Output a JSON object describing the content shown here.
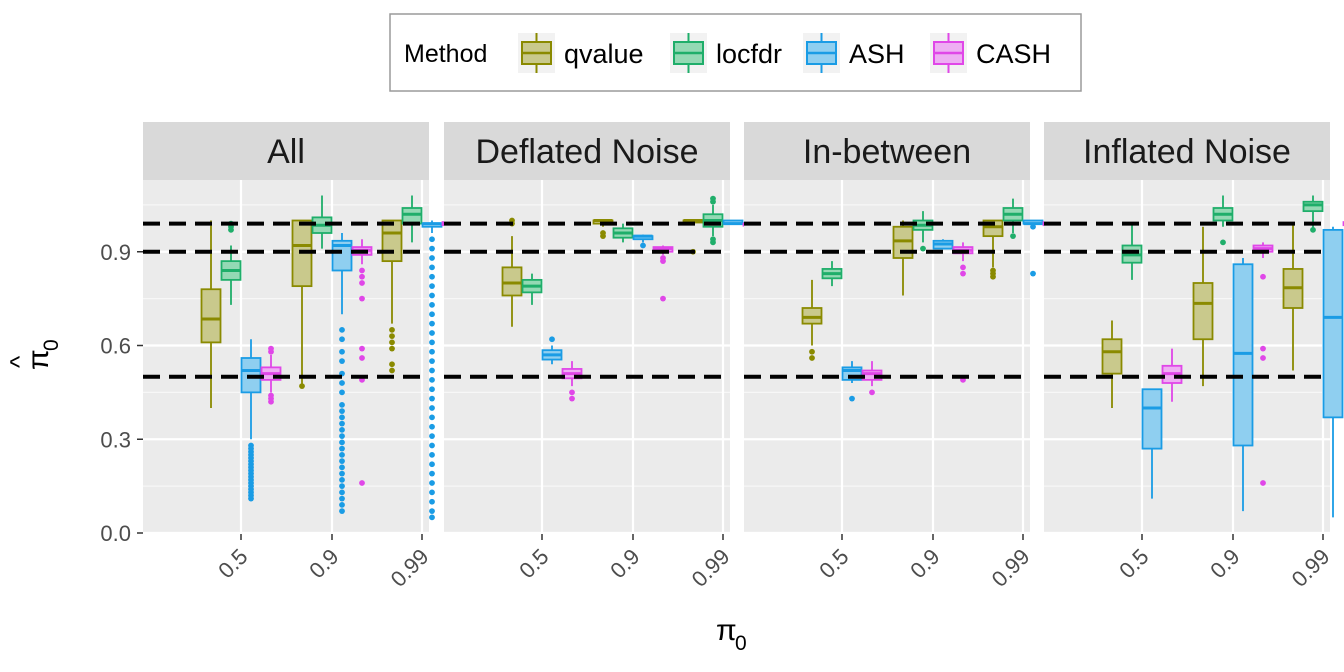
{
  "chart_data": {
    "type": "box",
    "xlabel": "π",
    "xlabel_sub": "0",
    "ylabel": "π",
    "ylabel_sub": "0",
    "ylabel_hat": "^",
    "y_ticks": [
      "0.0",
      "0.3",
      "0.6",
      "0.9"
    ],
    "y_tick_values": [
      0.0,
      0.3,
      0.6,
      0.9
    ],
    "ylim": [
      0,
      1.12
    ],
    "x_categories": [
      "0.5",
      "0.9",
      "0.99"
    ],
    "reference_lines": [
      0.5,
      0.9,
      0.99
    ],
    "legend_title": "Method",
    "legend_placement": "top",
    "methods": [
      {
        "name": "qvalue",
        "color": "#8a8a00",
        "fill": "#c9c98c"
      },
      {
        "name": "locfdr",
        "color": "#1fae6a",
        "fill": "#94d9b4"
      },
      {
        "name": "ASH",
        "color": "#1a9ce5",
        "fill": "#8fcff0"
      },
      {
        "name": "CASH",
        "color": "#e047e8",
        "fill": "#eeaef3"
      }
    ],
    "panels": [
      {
        "title": "All",
        "boxes": [
          [
            {
              "lw": 0.4,
              "q1": 0.61,
              "med": 0.685,
              "q3": 0.78,
              "uw": 1.0,
              "out": []
            },
            {
              "lw": 0.73,
              "q1": 0.81,
              "med": 0.84,
              "q3": 0.87,
              "uw": 0.92,
              "out": [
                0.97,
                0.98,
                0.99
              ]
            },
            {
              "lw": 0.3,
              "q1": 0.45,
              "med": 0.52,
              "q3": 0.56,
              "uw": 0.62,
              "out": [
                0.11,
                0.12,
                0.13,
                0.14,
                0.15,
                0.16,
                0.17,
                0.18,
                0.19,
                0.2,
                0.21,
                0.22,
                0.23,
                0.24,
                0.25,
                0.26,
                0.27,
                0.28
              ]
            },
            {
              "lw": 0.45,
              "q1": 0.49,
              "med": 0.51,
              "q3": 0.53,
              "uw": 0.57,
              "out": [
                0.42,
                0.43,
                0.44,
                0.58,
                0.59
              ]
            }
          ],
          [
            {
              "lw": 0.47,
              "q1": 0.79,
              "med": 0.92,
              "q3": 1.0,
              "uw": 1.0,
              "out": [
                0.47
              ]
            },
            {
              "lw": 0.91,
              "q1": 0.96,
              "med": 0.985,
              "q3": 1.01,
              "uw": 1.08,
              "out": []
            },
            {
              "lw": 0.7,
              "q1": 0.84,
              "med": 0.92,
              "q3": 0.935,
              "uw": 0.96,
              "out": [
                0.07,
                0.09,
                0.11,
                0.13,
                0.15,
                0.17,
                0.19,
                0.21,
                0.23,
                0.25,
                0.27,
                0.29,
                0.31,
                0.33,
                0.35,
                0.37,
                0.39,
                0.41,
                0.45,
                0.48,
                0.51,
                0.55,
                0.58,
                0.62,
                0.65
              ]
            },
            {
              "lw": 0.86,
              "q1": 0.89,
              "med": 0.905,
              "q3": 0.915,
              "uw": 0.94,
              "out": [
                0.16,
                0.49,
                0.56,
                0.59,
                0.75,
                0.8,
                0.82,
                0.84
              ]
            }
          ],
          [
            {
              "lw": 0.67,
              "q1": 0.87,
              "med": 0.96,
              "q3": 1.0,
              "uw": 1.0,
              "out": [
                0.52,
                0.54,
                0.59,
                0.61,
                0.63,
                0.65
              ]
            },
            {
              "lw": 0.93,
              "q1": 0.99,
              "med": 1.02,
              "q3": 1.04,
              "uw": 1.08,
              "out": []
            },
            {
              "lw": 0.96,
              "q1": 0.98,
              "med": 0.99,
              "q3": 0.99,
              "uw": 1.0,
              "out": [
                0.05,
                0.07,
                0.1,
                0.13,
                0.16,
                0.19,
                0.22,
                0.25,
                0.28,
                0.31,
                0.34,
                0.37,
                0.4,
                0.43,
                0.46,
                0.49,
                0.52,
                0.55,
                0.58,
                0.61,
                0.64,
                0.67,
                0.7,
                0.73,
                0.76,
                0.79,
                0.82,
                0.85,
                0.88,
                0.91,
                0.94
              ]
            },
            {
              "lw": 0.98,
              "q1": 0.985,
              "med": 0.99,
              "q3": 0.995,
              "uw": 1.0,
              "out": [
                0.42,
                0.54,
                0.9,
                0.93,
                0.95,
                0.97
              ]
            }
          ]
        ]
      },
      {
        "title": "Deflated Noise",
        "boxes": [
          [
            {
              "lw": 0.66,
              "q1": 0.76,
              "med": 0.8,
              "q3": 0.85,
              "uw": 0.95,
              "out": [
                0.99,
                1.0
              ]
            },
            {
              "lw": 0.73,
              "q1": 0.77,
              "med": 0.79,
              "q3": 0.81,
              "uw": 0.83,
              "out": []
            },
            {
              "lw": 0.54,
              "q1": 0.555,
              "med": 0.57,
              "q3": 0.585,
              "uw": 0.6,
              "out": [
                0.62
              ]
            },
            {
              "lw": 0.47,
              "q1": 0.495,
              "med": 0.51,
              "q3": 0.525,
              "uw": 0.55,
              "out": [
                0.43,
                0.45
              ]
            }
          ],
          [
            {
              "lw": 0.98,
              "q1": 0.99,
              "med": 1.0,
              "q3": 1.0,
              "uw": 1.0,
              "out": [
                0.95,
                0.96
              ]
            },
            {
              "lw": 0.93,
              "q1": 0.945,
              "med": 0.96,
              "q3": 0.975,
              "uw": 0.99,
              "out": []
            },
            {
              "lw": 0.93,
              "q1": 0.94,
              "med": 0.95,
              "q3": 0.95,
              "uw": 0.955,
              "out": [
                0.92
              ]
            },
            {
              "lw": 0.89,
              "q1": 0.9,
              "med": 0.91,
              "q3": 0.915,
              "uw": 0.92,
              "out": [
                0.75,
                0.87,
                0.88
              ]
            }
          ],
          [
            {
              "lw": 0.99,
              "q1": 0.995,
              "med": 1.0,
              "q3": 1.0,
              "uw": 1.0,
              "out": [
                0.9
              ]
            },
            {
              "lw": 0.95,
              "q1": 0.98,
              "med": 1.0,
              "q3": 1.02,
              "uw": 1.05,
              "out": [
                0.93,
                0.94,
                1.06,
                1.07
              ]
            },
            {
              "lw": 0.99,
              "q1": 0.99,
              "med": 0.99,
              "q3": 1.0,
              "uw": 1.0,
              "out": []
            },
            {
              "lw": 0.98,
              "q1": 0.985,
              "med": 0.99,
              "q3": 0.99,
              "uw": 1.0,
              "out": [
                0.94
              ]
            }
          ]
        ]
      },
      {
        "title": "In-between",
        "boxes": [
          [
            {
              "lw": 0.6,
              "q1": 0.67,
              "med": 0.69,
              "q3": 0.72,
              "uw": 0.81,
              "out": [
                0.56,
                0.58
              ]
            },
            {
              "lw": 0.79,
              "q1": 0.815,
              "med": 0.83,
              "q3": 0.845,
              "uw": 0.87,
              "out": []
            },
            {
              "lw": 0.48,
              "q1": 0.49,
              "med": 0.52,
              "q3": 0.53,
              "uw": 0.55,
              "out": [
                0.43
              ]
            },
            {
              "lw": 0.47,
              "q1": 0.49,
              "med": 0.51,
              "q3": 0.52,
              "uw": 0.55,
              "out": [
                0.45
              ]
            }
          ],
          [
            {
              "lw": 0.76,
              "q1": 0.88,
              "med": 0.935,
              "q3": 0.98,
              "uw": 1.0,
              "out": []
            },
            {
              "lw": 0.93,
              "q1": 0.97,
              "med": 0.985,
              "q3": 1.0,
              "uw": 1.03,
              "out": [
                0.91
              ]
            },
            {
              "lw": 0.91,
              "q1": 0.91,
              "med": 0.925,
              "q3": 0.935,
              "uw": 0.94,
              "out": []
            },
            {
              "lw": 0.87,
              "q1": 0.895,
              "med": 0.905,
              "q3": 0.915,
              "uw": 0.93,
              "out": [
                0.49,
                0.83,
                0.85
              ]
            }
          ],
          [
            {
              "lw": 0.85,
              "q1": 0.95,
              "med": 0.98,
              "q3": 1.0,
              "uw": 1.0,
              "out": [
                0.82,
                0.83,
                0.84
              ]
            },
            {
              "lw": 0.96,
              "q1": 1.0,
              "med": 1.02,
              "q3": 1.04,
              "uw": 1.07,
              "out": [
                0.95
              ]
            },
            {
              "lw": 0.99,
              "q1": 0.99,
              "med": 0.99,
              "q3": 1.0,
              "uw": 1.0,
              "out": [
                0.83,
                0.98
              ]
            },
            {
              "lw": 0.98,
              "q1": 0.985,
              "med": 0.99,
              "q3": 0.995,
              "uw": 1.0,
              "out": [
                0.42,
                0.92,
                0.96
              ]
            }
          ]
        ]
      },
      {
        "title": "Inflated Noise",
        "boxes": [
          [
            {
              "lw": 0.4,
              "q1": 0.51,
              "med": 0.58,
              "q3": 0.62,
              "uw": 0.68,
              "out": []
            },
            {
              "lw": 0.81,
              "q1": 0.865,
              "med": 0.89,
              "q3": 0.92,
              "uw": 0.99,
              "out": []
            },
            {
              "lw": 0.11,
              "q1": 0.27,
              "med": 0.4,
              "q3": 0.46,
              "uw": 0.46,
              "out": []
            },
            {
              "lw": 0.42,
              "q1": 0.48,
              "med": 0.51,
              "q3": 0.535,
              "uw": 0.59,
              "out": []
            }
          ],
          [
            {
              "lw": 0.47,
              "q1": 0.62,
              "med": 0.735,
              "q3": 0.8,
              "uw": 0.98,
              "out": []
            },
            {
              "lw": 0.98,
              "q1": 1.0,
              "med": 1.02,
              "q3": 1.04,
              "uw": 1.08,
              "out": [
                0.93
              ]
            },
            {
              "lw": 0.07,
              "q1": 0.28,
              "med": 0.575,
              "q3": 0.86,
              "uw": 0.88,
              "out": []
            },
            {
              "lw": 0.88,
              "q1": 0.9,
              "med": 0.91,
              "q3": 0.92,
              "uw": 0.93,
              "out": [
                0.16,
                0.56,
                0.59,
                0.82
              ]
            }
          ],
          [
            {
              "lw": 0.52,
              "q1": 0.72,
              "med": 0.785,
              "q3": 0.845,
              "uw": 0.99,
              "out": []
            },
            {
              "lw": 0.97,
              "q1": 1.03,
              "med": 1.05,
              "q3": 1.06,
              "uw": 1.08,
              "out": [
                0.97
              ]
            },
            {
              "lw": 0.05,
              "q1": 0.37,
              "med": 0.69,
              "q3": 0.97,
              "uw": 0.98,
              "out": []
            },
            {
              "lw": 0.98,
              "q1": 0.985,
              "med": 0.99,
              "q3": 0.995,
              "uw": 1.0,
              "out": [
                0.54
              ]
            }
          ]
        ]
      }
    ]
  }
}
